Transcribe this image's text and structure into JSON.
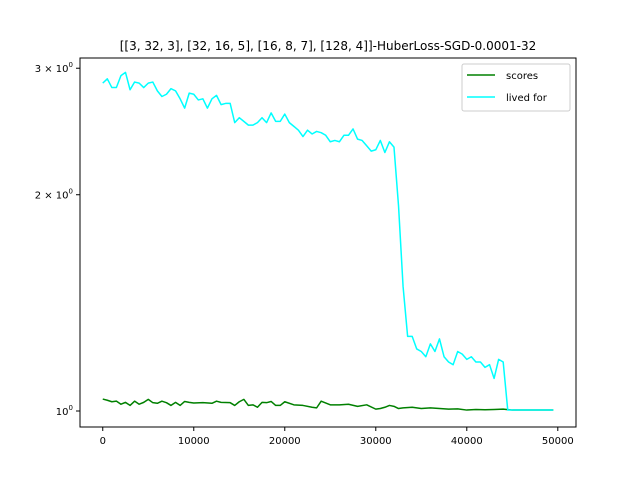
{
  "chart_data": {
    "type": "line",
    "title": "[[3, 32, 3], [32, 16, 5], [16, 8, 7], [128, 4]]-HuberLoss-SGD-0.0001-32",
    "xlabel": "",
    "ylabel": "",
    "y_scale": "log",
    "xlim": [
      -2500,
      52000
    ],
    "ylim": [
      0.95,
      3.1
    ],
    "x_ticks": [
      0,
      10000,
      20000,
      30000,
      40000,
      50000
    ],
    "x_tick_labels": [
      "0",
      "10000",
      "20000",
      "30000",
      "40000",
      "50000"
    ],
    "y_ticks": [
      1,
      2,
      3
    ],
    "y_tick_labels": [
      {
        "base": "10",
        "exp": "0",
        "prefix": ""
      },
      {
        "base": "10",
        "exp": "0",
        "prefix": "2 × "
      },
      {
        "base": "10",
        "exp": "0",
        "prefix": "3 × "
      }
    ],
    "grid": false,
    "legend_position": "top-right",
    "series": [
      {
        "name": "scores",
        "color": "#008000",
        "x": [
          0,
          500,
          1000,
          1500,
          2000,
          2500,
          3000,
          3500,
          4000,
          4500,
          5000,
          5500,
          6000,
          6500,
          7000,
          7500,
          8000,
          8500,
          9000,
          9500,
          10000,
          11000,
          12000,
          12500,
          13000,
          14000,
          14500,
          15000,
          15500,
          16000,
          16500,
          17000,
          17500,
          18000,
          18500,
          19000,
          19500,
          20000,
          21000,
          22000,
          23000,
          23500,
          24000,
          25000,
          26000,
          27000,
          28000,
          29000,
          30000,
          30500,
          31000,
          31500,
          32000,
          32500,
          33000,
          34000,
          35000,
          36000,
          37000,
          38000,
          39000,
          40000,
          41000,
          42000,
          43000,
          44000,
          45000,
          46000,
          47000,
          48000,
          49000,
          49500
        ],
        "values": [
          1.039,
          1.035,
          1.03,
          1.032,
          1.022,
          1.028,
          1.018,
          1.032,
          1.022,
          1.028,
          1.038,
          1.027,
          1.025,
          1.032,
          1.027,
          1.018,
          1.028,
          1.018,
          1.031,
          1.028,
          1.026,
          1.027,
          1.025,
          1.032,
          1.028,
          1.027,
          1.018,
          1.03,
          1.038,
          1.018,
          1.02,
          1.012,
          1.028,
          1.027,
          1.031,
          1.018,
          1.018,
          1.03,
          1.02,
          1.018,
          1.012,
          1.01,
          1.032,
          1.02,
          1.02,
          1.022,
          1.015,
          1.02,
          1.006,
          1.008,
          1.012,
          1.018,
          1.015,
          1.008,
          1.01,
          1.012,
          1.008,
          1.01,
          1.008,
          1.006,
          1.007,
          1.003,
          1.005,
          1.004,
          1.005,
          1.006,
          1.003,
          1.003,
          1.003,
          1.003,
          1.003,
          1.003
        ]
      },
      {
        "name": "lived for",
        "color": "#00ffff",
        "x": [
          0,
          500,
          1000,
          1500,
          2000,
          2500,
          3000,
          3500,
          4000,
          4500,
          5000,
          5500,
          6000,
          6500,
          7000,
          7500,
          8000,
          8500,
          9000,
          9500,
          10000,
          10500,
          11000,
          11500,
          12000,
          12500,
          13000,
          13500,
          14000,
          14500,
          15000,
          15500,
          16000,
          16500,
          17000,
          17500,
          18000,
          18500,
          19000,
          19500,
          20000,
          20500,
          21000,
          21500,
          22000,
          22500,
          23000,
          23500,
          24000,
          24500,
          25000,
          25500,
          26000,
          26500,
          27000,
          27500,
          28000,
          28500,
          29000,
          29500,
          30000,
          30500,
          31000,
          31500,
          32000,
          32500,
          33000,
          33500,
          34000,
          34500,
          35000,
          35500,
          36000,
          36500,
          37000,
          37500,
          38000,
          38500,
          39000,
          39500,
          40000,
          40500,
          41000,
          41500,
          42000,
          42500,
          43000,
          43500,
          44000,
          44500,
          45000,
          45500,
          46000,
          47000,
          48000,
          49000,
          49500
        ],
        "values": [
          2.86,
          2.9,
          2.82,
          2.82,
          2.93,
          2.96,
          2.8,
          2.87,
          2.86,
          2.82,
          2.86,
          2.87,
          2.79,
          2.74,
          2.76,
          2.81,
          2.79,
          2.72,
          2.64,
          2.77,
          2.76,
          2.71,
          2.72,
          2.64,
          2.72,
          2.75,
          2.67,
          2.68,
          2.68,
          2.52,
          2.56,
          2.53,
          2.5,
          2.5,
          2.52,
          2.56,
          2.52,
          2.6,
          2.53,
          2.53,
          2.59,
          2.52,
          2.49,
          2.46,
          2.41,
          2.46,
          2.43,
          2.45,
          2.44,
          2.42,
          2.37,
          2.38,
          2.37,
          2.42,
          2.42,
          2.47,
          2.39,
          2.38,
          2.34,
          2.3,
          2.31,
          2.38,
          2.29,
          2.37,
          2.33,
          1.93,
          1.49,
          1.27,
          1.27,
          1.22,
          1.21,
          1.19,
          1.24,
          1.21,
          1.26,
          1.19,
          1.17,
          1.16,
          1.21,
          1.2,
          1.18,
          1.19,
          1.17,
          1.17,
          1.15,
          1.16,
          1.11,
          1.18,
          1.17,
          1.003,
          1.003,
          1.003,
          1.003,
          1.003,
          1.003,
          1.003,
          1.003
        ]
      }
    ]
  }
}
